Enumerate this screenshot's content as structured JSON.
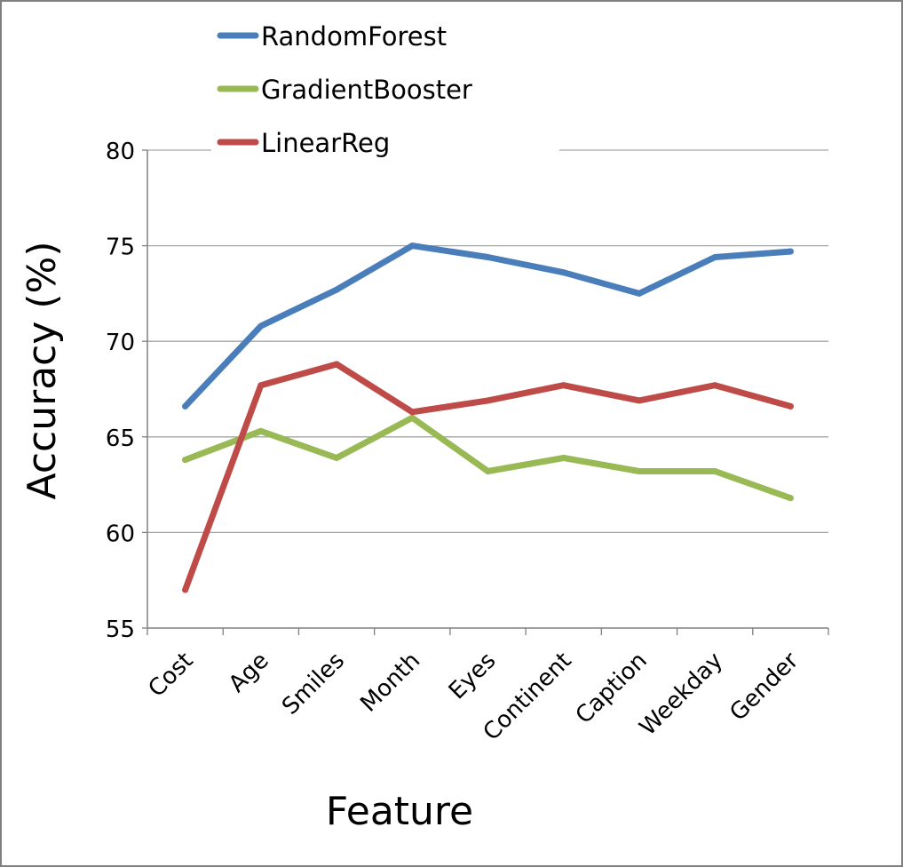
{
  "chart_data": {
    "type": "line",
    "title": "",
    "xlabel": "Feature",
    "ylabel": "Accuracy (%)",
    "categories": [
      "Cost",
      "Age",
      "Smiles",
      "Month",
      "Eyes",
      "Continent",
      "Caption",
      "Weekday",
      "Gender"
    ],
    "ylim": [
      55,
      80
    ],
    "yticks": [
      55,
      60,
      65,
      70,
      75,
      80
    ],
    "grid": true,
    "legend_position": "top-left",
    "series": [
      {
        "name": "RandomForest",
        "color": "#4a7ebb",
        "values": [
          66.6,
          70.8,
          72.7,
          75.0,
          74.4,
          73.6,
          72.5,
          74.4,
          74.7
        ]
      },
      {
        "name": "GradientBooster",
        "color": "#98b954",
        "values": [
          63.8,
          65.3,
          63.9,
          66.0,
          63.2,
          63.9,
          63.2,
          63.2,
          61.8
        ]
      },
      {
        "name": "LinearReg",
        "color": "#be4b48",
        "values": [
          57.0,
          67.7,
          68.8,
          66.3,
          66.9,
          67.7,
          66.9,
          67.7,
          66.6
        ]
      }
    ]
  }
}
